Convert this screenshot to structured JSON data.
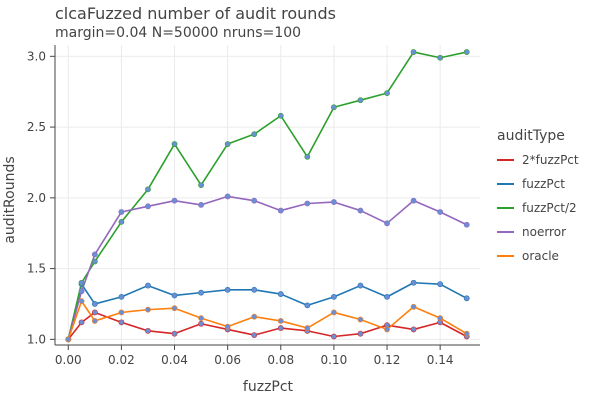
{
  "chart_data": {
    "type": "line",
    "title": "clcaFuzzed number of audit rounds",
    "subtitle": "margin=0.04 N=50000 nruns=100",
    "xlabel": "fuzzPct",
    "ylabel": "auditRounds",
    "xlim": [
      -0.005,
      0.155
    ],
    "ylim": [
      0.96,
      3.08
    ],
    "xticks": [
      0.0,
      0.02,
      0.04,
      0.06,
      0.08,
      0.1,
      0.12,
      0.14
    ],
    "xtick_labels": [
      "0.00",
      "0.02",
      "0.04",
      "0.06",
      "0.08",
      "0.10",
      "0.12",
      "0.14"
    ],
    "yticks": [
      1.0,
      1.5,
      2.0,
      2.5,
      3.0
    ],
    "ytick_labels": [
      "1.0",
      "1.5",
      "2.0",
      "2.5",
      "3.0"
    ],
    "grid": true,
    "legend_title": "auditType",
    "legend_position": "right",
    "marker_color": "#6b8fd4",
    "x": [
      0.0,
      0.005,
      0.01,
      0.02,
      0.03,
      0.04,
      0.05,
      0.06,
      0.07,
      0.08,
      0.09,
      0.1,
      0.11,
      0.12,
      0.13,
      0.14,
      0.15
    ],
    "series": [
      {
        "name": "2*fuzzPct",
        "color": "#d62728",
        "values": [
          1.0,
          1.12,
          1.19,
          1.12,
          1.06,
          1.04,
          1.11,
          1.07,
          1.03,
          1.08,
          1.06,
          1.02,
          1.04,
          1.1,
          1.07,
          1.12,
          1.02
        ]
      },
      {
        "name": "fuzzPct",
        "color": "#1f77b4",
        "values": [
          1.0,
          1.39,
          1.25,
          1.3,
          1.38,
          1.31,
          1.33,
          1.35,
          1.35,
          1.32,
          1.24,
          1.3,
          1.38,
          1.3,
          1.4,
          1.39,
          1.29
        ]
      },
      {
        "name": "fuzzPct/2",
        "color": "#2ca02c",
        "values": [
          1.0,
          1.4,
          1.55,
          1.83,
          2.06,
          2.38,
          2.09,
          2.38,
          2.45,
          2.58,
          2.29,
          2.64,
          2.69,
          2.74,
          3.03,
          2.99,
          3.03
        ]
      },
      {
        "name": "noerror",
        "color": "#9467bd",
        "values": [
          1.0,
          1.34,
          1.6,
          1.9,
          1.94,
          1.98,
          1.95,
          2.01,
          1.98,
          1.91,
          1.96,
          1.97,
          1.91,
          1.82,
          1.98,
          1.9,
          1.81
        ]
      },
      {
        "name": "oracle",
        "color": "#ff7f0e",
        "values": [
          1.0,
          1.27,
          1.13,
          1.19,
          1.21,
          1.22,
          1.15,
          1.09,
          1.16,
          1.13,
          1.08,
          1.19,
          1.14,
          1.07,
          1.23,
          1.15,
          1.04
        ]
      }
    ]
  }
}
